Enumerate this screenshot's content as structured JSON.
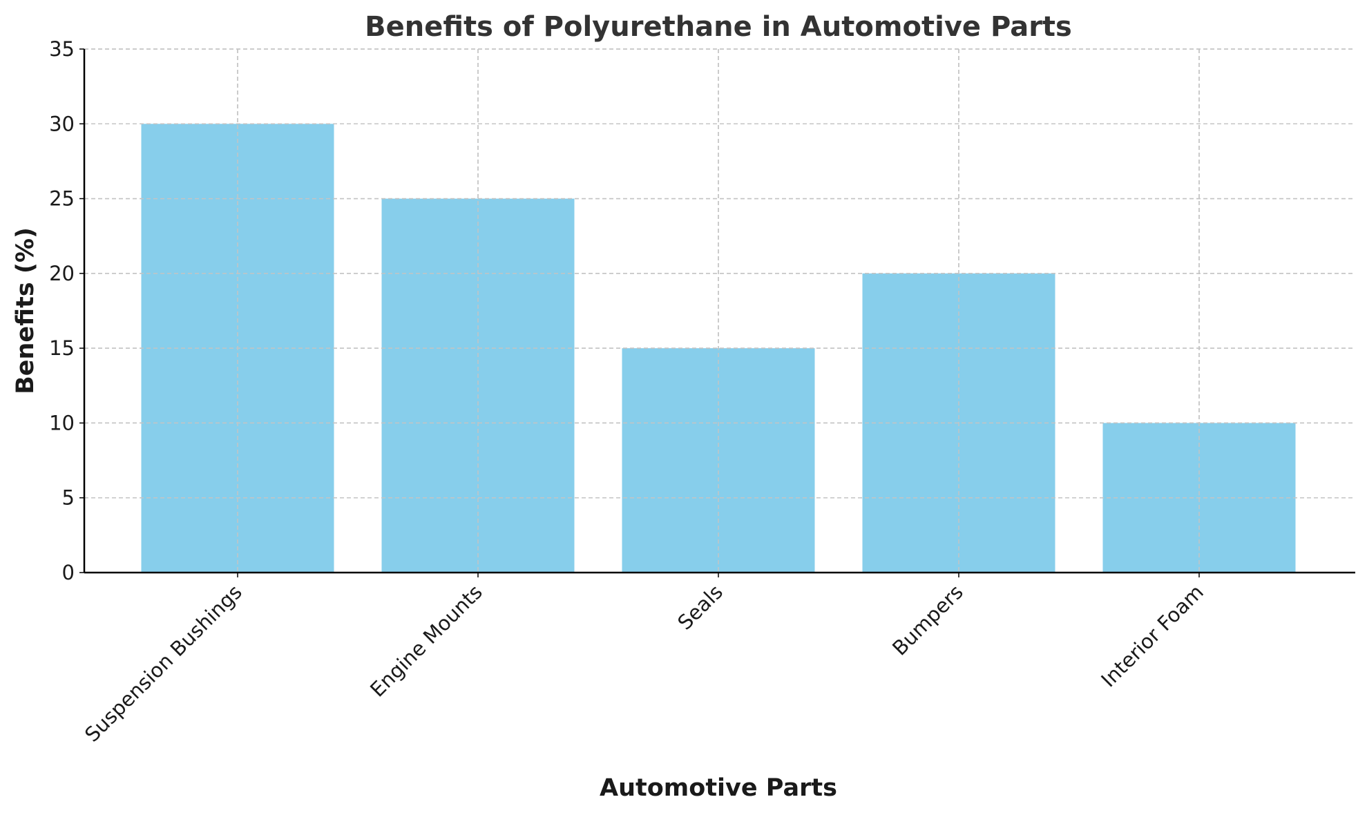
{
  "chart_data": {
    "type": "bar",
    "title": "Benefits of Polyurethane in Automotive Parts",
    "xlabel": "Automotive Parts",
    "ylabel": "Benefits (%)",
    "categories": [
      "Suspension Bushings",
      "Engine Mounts",
      "Seals",
      "Bumpers",
      "Interior Foam"
    ],
    "values": [
      30,
      25,
      15,
      20,
      10
    ],
    "ylim": [
      0,
      35
    ],
    "yticks": [
      0,
      5,
      10,
      15,
      20,
      25,
      30,
      35
    ],
    "grid": true,
    "legend": "none",
    "bar_color": "#87CEEB"
  }
}
